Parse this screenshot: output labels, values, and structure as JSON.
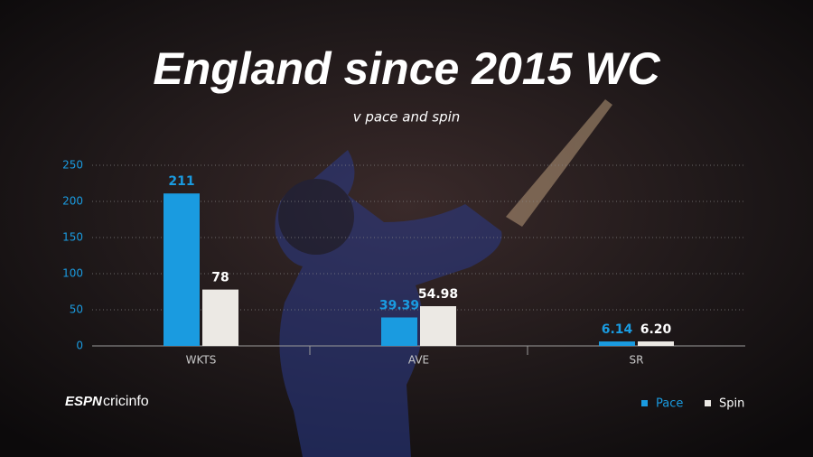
{
  "chart_data": {
    "type": "bar",
    "title": "England since 2015 WC",
    "subtitle": "v pace and spin",
    "categories": [
      "WKTS",
      "AVE",
      "SR"
    ],
    "series": [
      {
        "name": "Pace",
        "color": "#1a9be0",
        "values": [
          211,
          39.39,
          6.14
        ],
        "value_labels": [
          "211",
          "39.39",
          "6.14"
        ]
      },
      {
        "name": "Spin",
        "color": "#ece9e4",
        "values": [
          78,
          54.98,
          6.2
        ],
        "value_labels": [
          "78",
          "54.98",
          "6.20"
        ]
      }
    ],
    "ylim": [
      0,
      250
    ],
    "yticks": [
      0,
      50,
      100,
      150,
      200,
      250
    ],
    "grid": true,
    "legend": "bottom-right"
  },
  "branding": {
    "espn": "ESPN",
    "cricinfo": "cricinfo"
  }
}
